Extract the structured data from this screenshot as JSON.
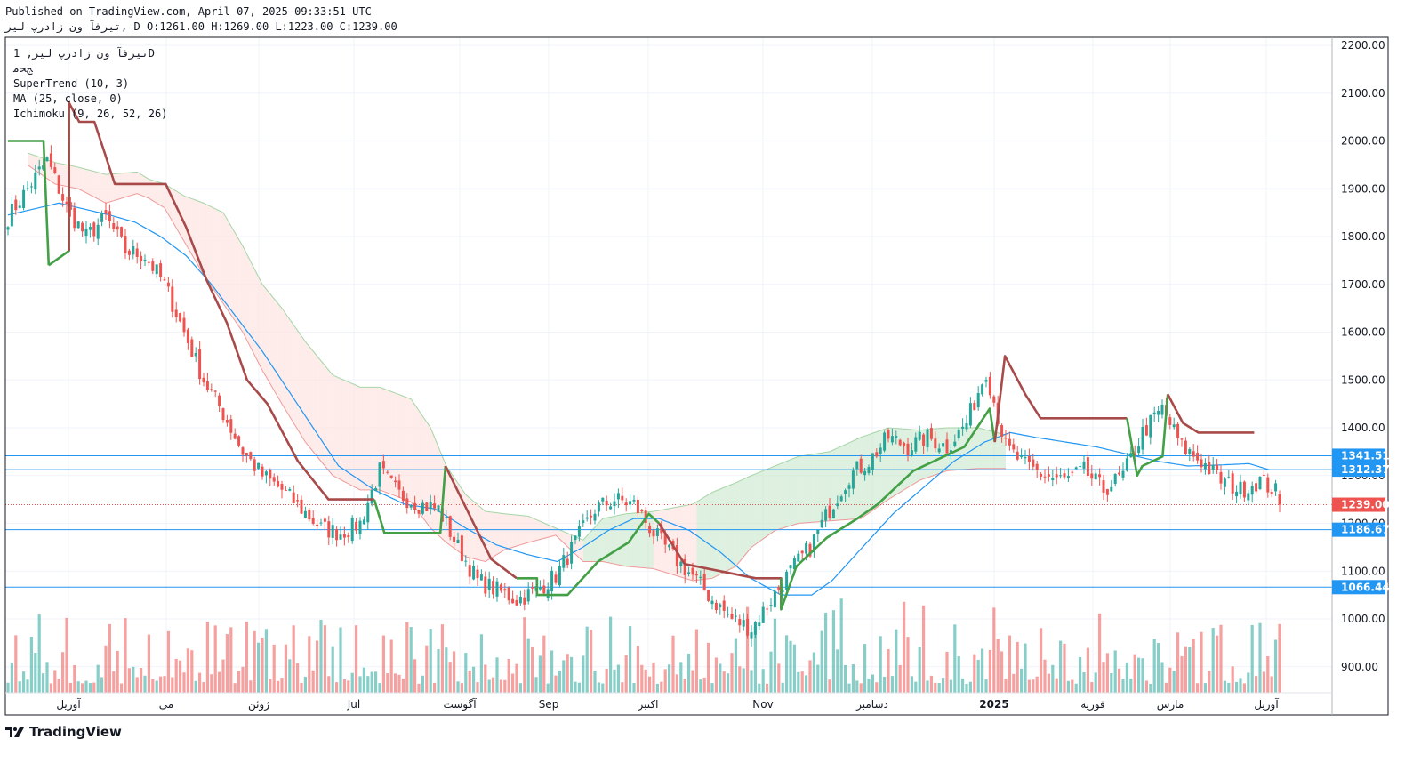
{
  "header": {
    "published": "Published on TradingView.com, April 07, 2025 09:33:51 UTC",
    "ohlc_line": "تیرفآ ون زادرپ لیر, D O:1261.00 H:1269.00 L:1223.00 C:1239.00"
  },
  "legend": {
    "symbol": "تیرفآ ون زادرپ لیر, 1D",
    "sub": "ﺞﺤﻣ",
    "supertrend": "SuperTrend (10, 3)",
    "ma": "MA (25, close, 0)",
    "ichimoku": "Ichimoku (9, 26, 52, 26)"
  },
  "brand": {
    "name": "TradingView"
  },
  "colors": {
    "up": "#26a69a",
    "down": "#ef5350",
    "supertrend_up": "#43a047",
    "supertrend_down": "#a84a4a",
    "ma": "#2196f3",
    "hline": "#2196f3",
    "last_price": "#ef5350",
    "cloud_bull": "#c8e6c9",
    "cloud_bear": "#fde0dc"
  },
  "chart_data": {
    "type": "candlestick",
    "price_axis": {
      "ticks": [
        900,
        1000,
        1100,
        1200,
        1300,
        1400,
        1500,
        1600,
        1700,
        1800,
        1900,
        2000,
        2100,
        2200
      ],
      "tick_labels": [
        "900.00",
        "1000.00",
        "1100.00",
        "1200.00",
        "1300.00",
        "1400.00",
        "1500.00",
        "1600.00",
        "1700.00",
        "1800.00",
        "1900.00",
        "2000.00",
        "2100.00",
        "2200.00"
      ]
    },
    "time_axis": [
      "آوریل",
      "می",
      "ژوئن",
      "Jul",
      "آگوست",
      "Sep",
      "اکتبر",
      "Nov",
      "دسامبر",
      "2025",
      "فوریه",
      "مارس",
      "آوریل"
    ],
    "horizontal_levels": [
      {
        "value": 1341.51,
        "label": "1341.51"
      },
      {
        "value": 1312.37,
        "label": "1312.37"
      },
      {
        "value": 1186.67,
        "label": "1186.67"
      },
      {
        "value": 1066.44,
        "label": "1066.44"
      }
    ],
    "last_price": {
      "value": 1239.0,
      "label": "1239.00"
    },
    "last_bar": {
      "open": 1261.0,
      "high": 1269.0,
      "low": 1223.0,
      "close": 1239.0
    },
    "path_keys_weekly": [
      1840,
      1900,
      1960,
      1860,
      1800,
      1840,
      1770,
      1760,
      1700,
      1600,
      1500,
      1430,
      1350,
      1300,
      1270,
      1230,
      1190,
      1180,
      1200,
      1310,
      1260,
      1240,
      1230,
      1150,
      1080,
      1060,
      1040,
      1060,
      1090,
      1160,
      1230,
      1250,
      1240,
      1180,
      1130,
      1090,
      1040,
      1000,
      980,
      1040,
      1100,
      1150,
      1230,
      1300,
      1330,
      1380,
      1360,
      1380,
      1360,
      1410,
      1520,
      1360,
      1320,
      1300,
      1290,
      1310,
      1270,
      1300,
      1390,
      1440,
      1360,
      1330,
      1290,
      1270,
      1290,
      1260,
      1239
    ],
    "supertrend_keys": [
      [
        0,
        2000
      ],
      [
        7,
        2000
      ],
      [
        8,
        1740
      ],
      [
        12,
        1770
      ],
      [
        12,
        2080
      ],
      [
        14,
        2040
      ],
      [
        17,
        2040
      ],
      [
        19,
        1975
      ],
      [
        21,
        1910
      ],
      [
        31,
        1910
      ],
      [
        35,
        1820
      ],
      [
        39,
        1710
      ],
      [
        43,
        1620
      ],
      [
        47,
        1500
      ],
      [
        51,
        1450
      ],
      [
        53,
        1410
      ],
      [
        57,
        1330
      ],
      [
        63,
        1250
      ],
      [
        69,
        1250
      ],
      [
        72,
        1250
      ],
      [
        74,
        1180
      ],
      [
        85,
        1180
      ],
      [
        86,
        1320
      ],
      [
        95,
        1125
      ],
      [
        100,
        1085
      ],
      [
        104,
        1085
      ],
      [
        104,
        1050
      ],
      [
        110,
        1050
      ],
      [
        116,
        1120
      ],
      [
        122,
        1160
      ],
      [
        126,
        1220
      ],
      [
        128,
        1200
      ],
      [
        133,
        1115
      ],
      [
        147,
        1085
      ],
      [
        152,
        1085
      ],
      [
        152,
        1020
      ],
      [
        155,
        1110
      ],
      [
        161,
        1170
      ],
      [
        167,
        1210
      ],
      [
        171,
        1240
      ],
      [
        178,
        1310
      ],
      [
        188,
        1360
      ],
      [
        193,
        1440
      ],
      [
        194,
        1370
      ],
      [
        196,
        1550
      ],
      [
        200,
        1470
      ],
      [
        203,
        1420
      ],
      [
        210,
        1420
      ],
      [
        220,
        1420
      ],
      [
        222,
        1300
      ],
      [
        223,
        1320
      ],
      [
        227,
        1340
      ],
      [
        228,
        1470
      ],
      [
        231,
        1410
      ],
      [
        234,
        1390
      ],
      [
        245,
        1390
      ]
    ],
    "supertrend_color_break": [
      [
        0,
        8,
        "up"
      ],
      [
        8,
        12,
        "up"
      ],
      [
        12,
        72,
        "down"
      ],
      [
        72,
        86,
        "up"
      ],
      [
        86,
        100,
        "down"
      ],
      [
        100,
        128,
        "up"
      ],
      [
        128,
        152,
        "down"
      ],
      [
        152,
        194,
        "up"
      ],
      [
        194,
        220,
        "down"
      ],
      [
        220,
        228,
        "up"
      ],
      [
        228,
        245,
        "down"
      ]
    ],
    "cloud_top_keys": [
      [
        5,
        1975
      ],
      [
        12,
        1955
      ],
      [
        18,
        1945
      ],
      [
        25,
        1930
      ],
      [
        33,
        1935
      ],
      [
        36,
        1920
      ],
      [
        40,
        1910
      ],
      [
        45,
        1885
      ],
      [
        50,
        1870
      ],
      [
        55,
        1850
      ],
      [
        60,
        1780
      ],
      [
        65,
        1700
      ],
      [
        70,
        1650
      ],
      [
        76,
        1580
      ],
      [
        83,
        1510
      ],
      [
        90,
        1485
      ],
      [
        95,
        1485
      ],
      [
        103,
        1460
      ],
      [
        108,
        1400
      ],
      [
        112,
        1320
      ],
      [
        117,
        1260
      ],
      [
        122,
        1225
      ],
      [
        127,
        1220
      ],
      [
        133,
        1215
      ],
      [
        140,
        1190
      ],
      [
        147,
        1165
      ],
      [
        152,
        1210
      ],
      [
        158,
        1220
      ],
      [
        165,
        1225
      ],
      [
        175,
        1240
      ],
      [
        180,
        1265
      ],
      [
        186,
        1285
      ],
      [
        190,
        1300
      ],
      [
        196,
        1320
      ],
      [
        202,
        1340
      ],
      [
        210,
        1350
      ],
      [
        218,
        1380
      ],
      [
        225,
        1400
      ],
      [
        233,
        1395
      ],
      [
        240,
        1400
      ],
      [
        248,
        1400
      ],
      [
        255,
        1385
      ]
    ],
    "cloud_bottom_keys": [
      [
        5,
        1950
      ],
      [
        12,
        1910
      ],
      [
        18,
        1900
      ],
      [
        25,
        1870
      ],
      [
        33,
        1890
      ],
      [
        36,
        1880
      ],
      [
        40,
        1860
      ],
      [
        45,
        1790
      ],
      [
        50,
        1720
      ],
      [
        55,
        1660
      ],
      [
        60,
        1600
      ],
      [
        65,
        1520
      ],
      [
        70,
        1450
      ],
      [
        76,
        1370
      ],
      [
        83,
        1300
      ],
      [
        90,
        1270
      ],
      [
        95,
        1270
      ],
      [
        103,
        1245
      ],
      [
        108,
        1190
      ],
      [
        112,
        1160
      ],
      [
        117,
        1130
      ],
      [
        122,
        1120
      ],
      [
        127,
        1145
      ],
      [
        133,
        1160
      ],
      [
        140,
        1175
      ],
      [
        147,
        1120
      ],
      [
        152,
        1120
      ],
      [
        158,
        1110
      ],
      [
        165,
        1105
      ],
      [
        175,
        1080
      ],
      [
        180,
        1085
      ],
      [
        186,
        1110
      ],
      [
        190,
        1150
      ],
      [
        196,
        1185
      ],
      [
        202,
        1200
      ],
      [
        210,
        1205
      ],
      [
        218,
        1210
      ],
      [
        225,
        1250
      ],
      [
        233,
        1290
      ],
      [
        240,
        1310
      ],
      [
        248,
        1315
      ],
      [
        255,
        1315
      ]
    ],
    "ma_keys": [
      [
        0,
        1845
      ],
      [
        10,
        1870
      ],
      [
        20,
        1845
      ],
      [
        25,
        1830
      ],
      [
        30,
        1800
      ],
      [
        35,
        1760
      ],
      [
        40,
        1700
      ],
      [
        45,
        1630
      ],
      [
        50,
        1560
      ],
      [
        55,
        1480
      ],
      [
        60,
        1400
      ],
      [
        65,
        1320
      ],
      [
        72,
        1270
      ],
      [
        78,
        1240
      ],
      [
        84,
        1230
      ],
      [
        90,
        1190
      ],
      [
        96,
        1155
      ],
      [
        102,
        1135
      ],
      [
        108,
        1120
      ],
      [
        113,
        1150
      ],
      [
        118,
        1185
      ],
      [
        123,
        1210
      ],
      [
        128,
        1210
      ],
      [
        134,
        1185
      ],
      [
        140,
        1140
      ],
      [
        146,
        1085
      ],
      [
        152,
        1050
      ],
      [
        158,
        1050
      ],
      [
        162,
        1080
      ],
      [
        168,
        1150
      ],
      [
        174,
        1220
      ],
      [
        180,
        1275
      ],
      [
        186,
        1330
      ],
      [
        192,
        1370
      ],
      [
        197,
        1390
      ],
      [
        202,
        1380
      ],
      [
        208,
        1370
      ],
      [
        214,
        1360
      ],
      [
        220,
        1345
      ],
      [
        226,
        1330
      ],
      [
        232,
        1320
      ],
      [
        238,
        1322
      ],
      [
        244,
        1325
      ],
      [
        248,
        1312
      ]
    ]
  }
}
